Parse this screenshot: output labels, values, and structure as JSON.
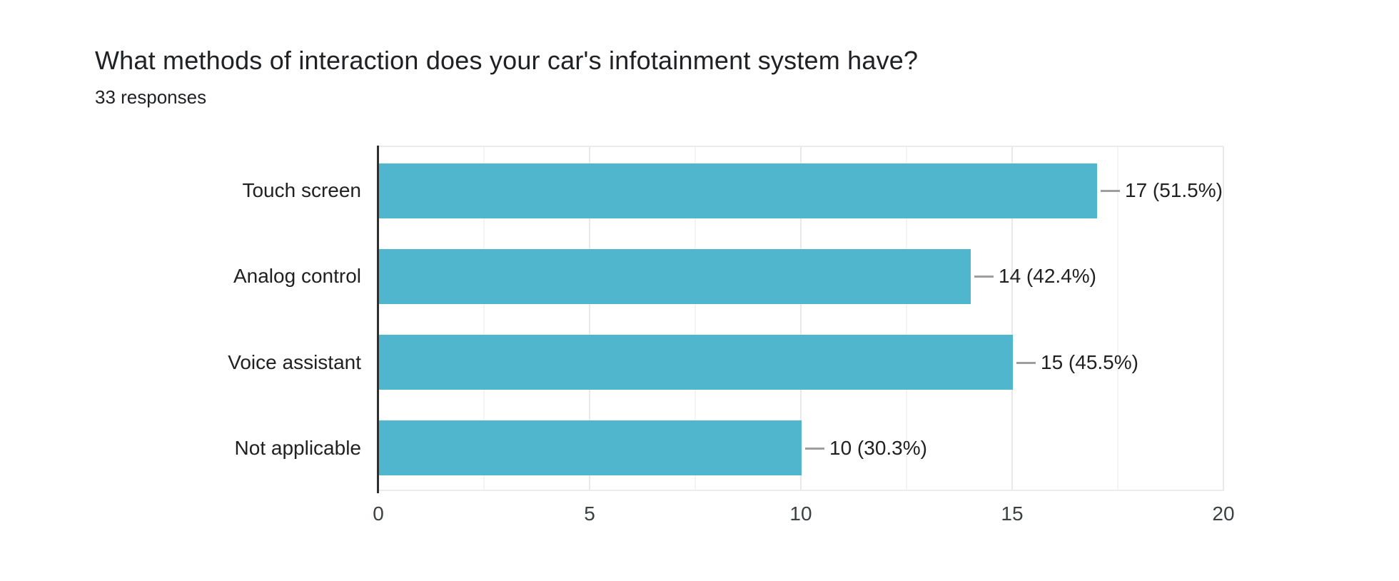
{
  "page": {
    "background": "#ffffff"
  },
  "header": {
    "title": "What methods of interaction does your car's infotainment system have?",
    "responses_label": "33 responses"
  },
  "chart_data": {
    "type": "bar",
    "orientation": "horizontal",
    "title": "What methods of interaction does your car's infotainment system have?",
    "subtitle": "33 responses",
    "categories": [
      "Touch screen",
      "Analog control",
      "Voice assistant",
      "Not applicable"
    ],
    "values": [
      17,
      14,
      15,
      10
    ],
    "value_labels": [
      "17 (51.5%)",
      "14 (42.4%)",
      "15 (45.5%)",
      "10 (30.3%)"
    ],
    "xlim": [
      0,
      20
    ],
    "x_major_ticks": [
      "0",
      "5",
      "10",
      "15",
      "20"
    ],
    "x_major_tick_values": [
      0,
      5,
      10,
      15,
      20
    ],
    "x_minor_tick_values": [
      2.5,
      7.5,
      12.5,
      17.5
    ],
    "grid": "vertical-on",
    "legend": "none",
    "colors": {
      "bar": "#4fb6ce",
      "title_text": "#202124",
      "subtitle_text": "#202124",
      "category_text": "#212121",
      "value_text": "#212121",
      "tick_text": "#3c4043",
      "axis_line": "#2f2f2f",
      "major_gridline": "#e8e8e8",
      "minor_gridline": "#f5f5f5",
      "plot_border": "#ececec",
      "connector": "#9e9e9e"
    }
  }
}
